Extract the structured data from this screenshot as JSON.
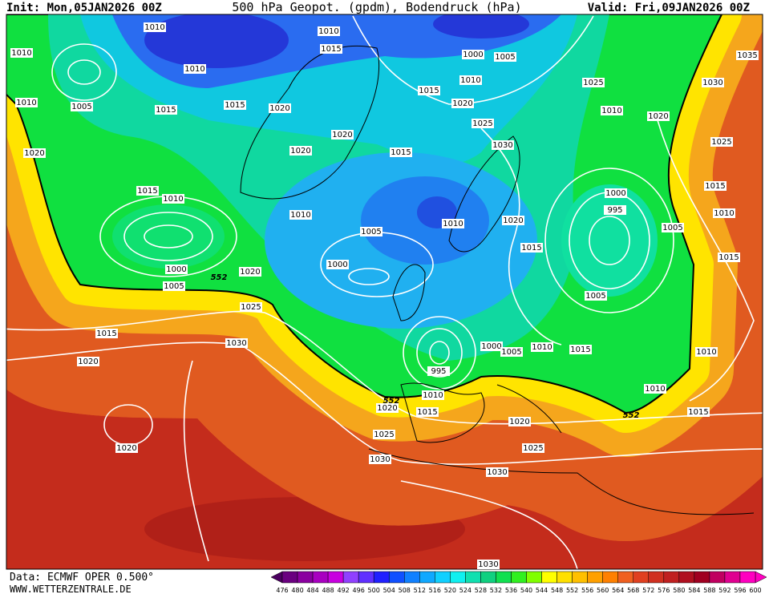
{
  "header": {
    "init": "Init: Mon,05JAN2026 00Z",
    "title": "500 hPa Geopot. (gpdm), Bodendruck (hPa)",
    "valid": "Valid: Fri,09JAN2026 00Z"
  },
  "footer": {
    "data_source": "Data: ECMWF OPER 0.500°",
    "website": "WWW.WETTERZENTRALE.DE"
  },
  "isobar_labels": [
    1010,
    1010,
    1015,
    1010,
    1010,
    1000,
    1005,
    1035,
    1010,
    1025,
    1030,
    1015,
    1010,
    1005,
    1015,
    1015,
    1020,
    1020,
    1010,
    1020,
    1025,
    1020,
    1030,
    1025,
    1020,
    1020,
    1015,
    1015,
    1010,
    1000,
    1015,
    995,
    1010,
    1010,
    1020,
    1010,
    1005,
    1005,
    1015,
    1015,
    1000,
    1000,
    1020,
    1005,
    1005,
    1025,
    1015,
    1030,
    1020,
    1000,
    1005,
    1010,
    1015,
    1010,
    995,
    1010,
    1020,
    1015,
    1010,
    1015,
    1020,
    1025,
    1025,
    1020,
    1030,
    1030,
    1030
  ],
  "geopotential_labels": [
    552,
    552,
    552
  ],
  "legend": {
    "levels": [
      476,
      480,
      484,
      488,
      492,
      496,
      500,
      504,
      508,
      512,
      516,
      520,
      524,
      528,
      532,
      536,
      540,
      544,
      548,
      552,
      556,
      560,
      564,
      568,
      572,
      576,
      580,
      584,
      588,
      592,
      596,
      600
    ],
    "colors": [
      "#4b0060",
      "#6a0080",
      "#8a00a0",
      "#a800c0",
      "#c800e0",
      "#9040ff",
      "#6030ff",
      "#2020ff",
      "#1050ff",
      "#1080ff",
      "#10a8ff",
      "#10d0ff",
      "#10f0f0",
      "#10e0b0",
      "#10d080",
      "#10e050",
      "#30f020",
      "#80ff00",
      "#ffff00",
      "#ffe000",
      "#ffc000",
      "#ffa000",
      "#ff8000",
      "#f06020",
      "#e04020",
      "#d03020",
      "#c02020",
      "#b01020",
      "#a00020",
      "#c00060",
      "#e00090",
      "#ff00c0"
    ]
  }
}
